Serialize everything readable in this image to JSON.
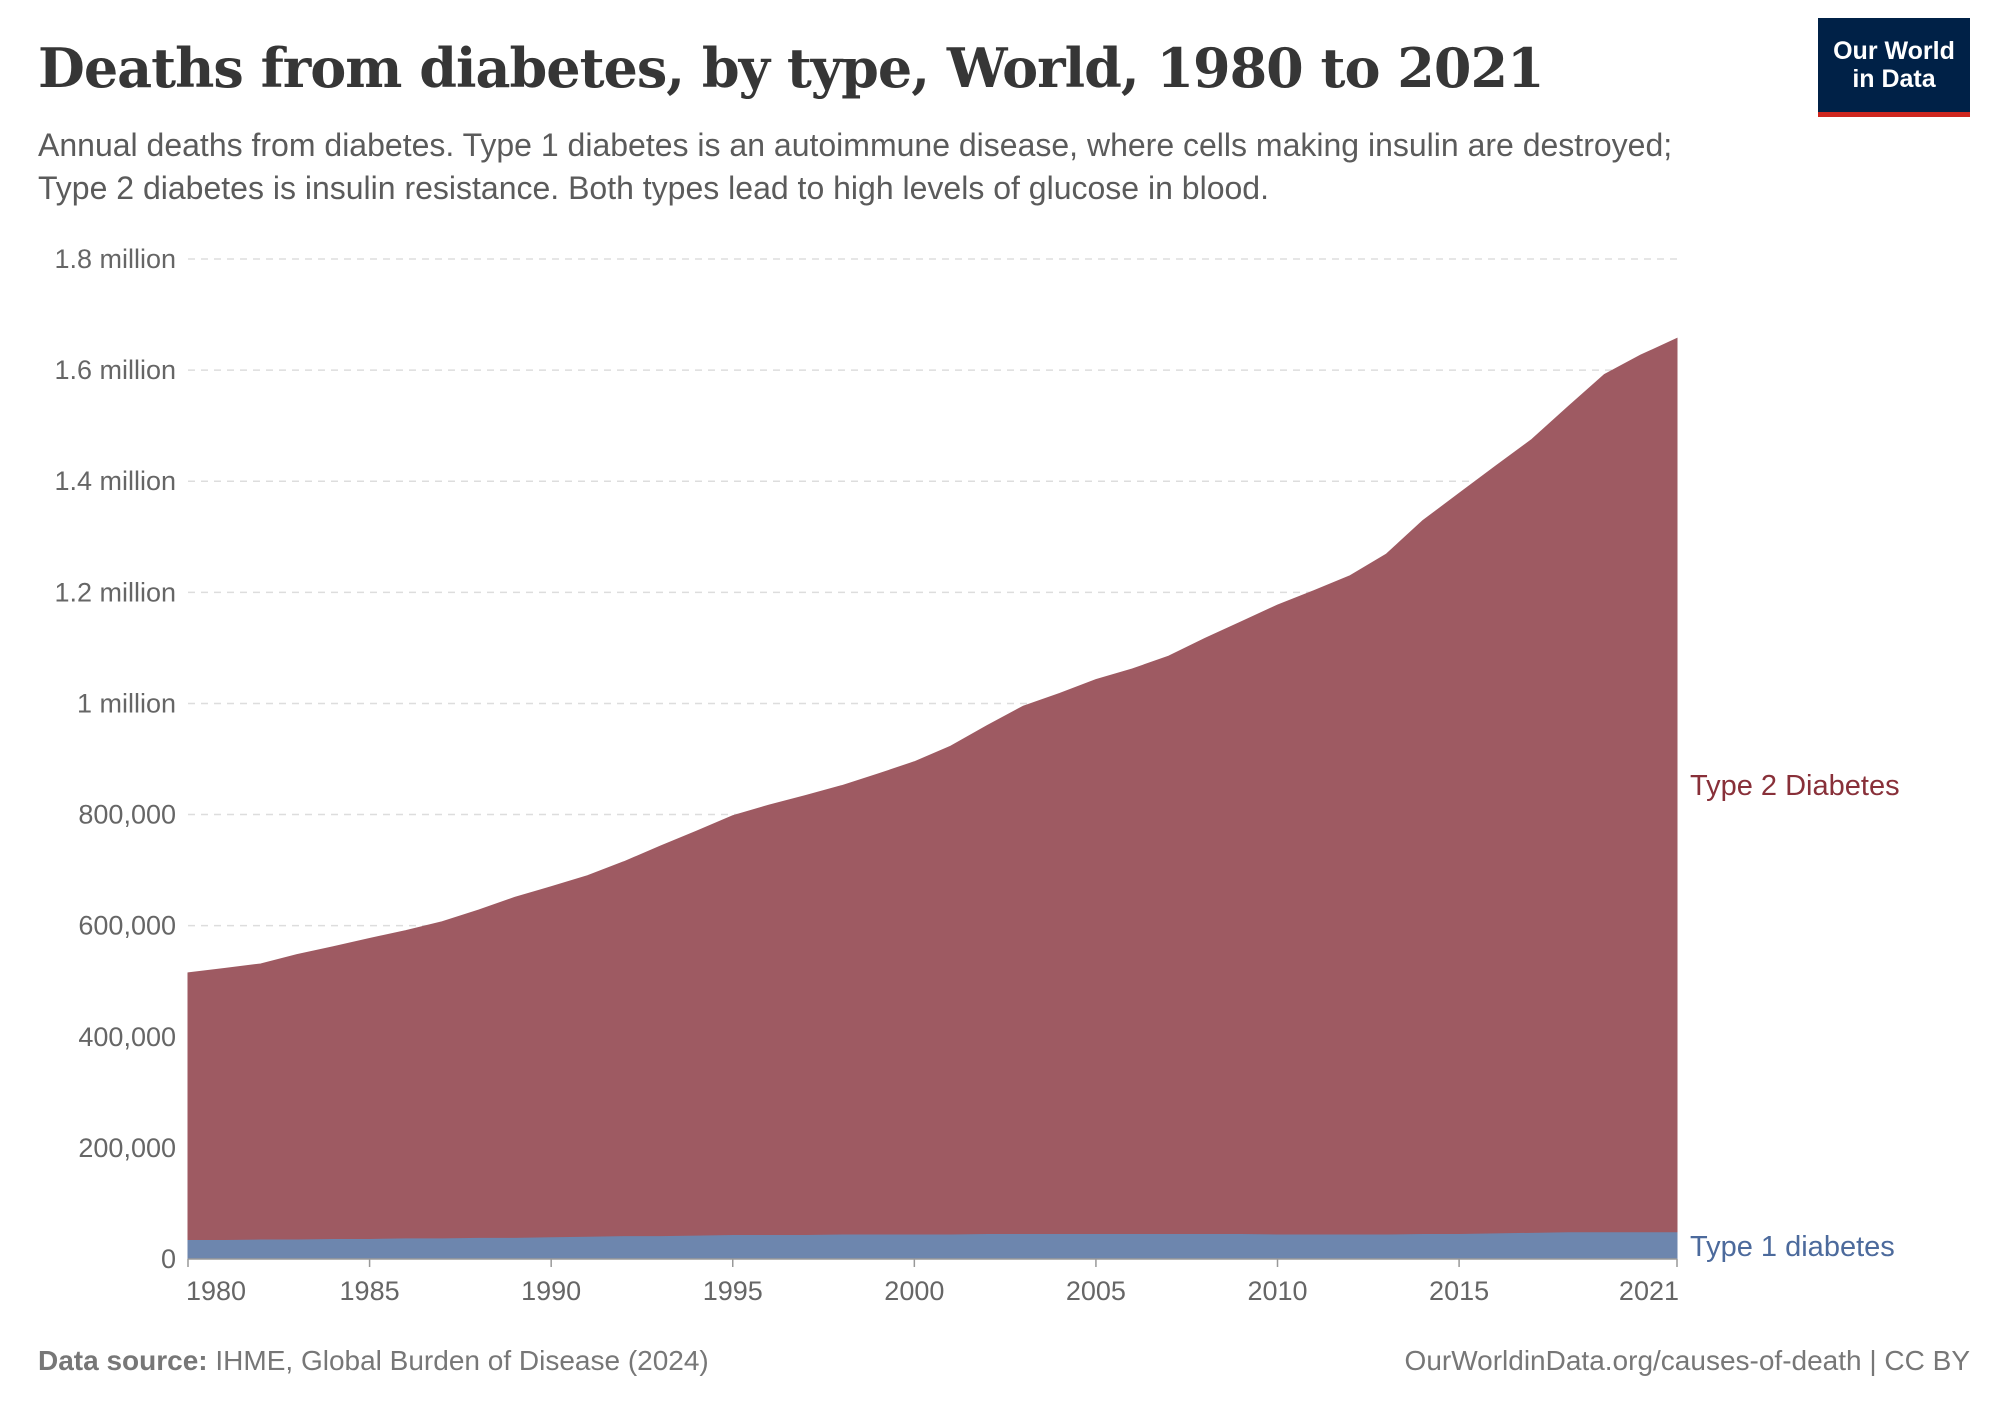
{
  "header": {
    "title": "Deaths from diabetes, by type, World, 1980 to 2021",
    "subtitle": "Annual deaths from diabetes. Type 1 diabetes is an autoimmune disease, where cells making insulin are destroyed; Type 2 diabetes is insulin resistance. Both types lead to high levels of glucose in blood.",
    "logo_line1": "Our World",
    "logo_line2": "in Data"
  },
  "footer": {
    "source_label": "Data source:",
    "source_text": "IHME, Global Burden of Disease (2024)",
    "url": "OurWorldinData.org/causes-of-death",
    "license": "| CC BY"
  },
  "chart_data": {
    "type": "area",
    "stacked": true,
    "title": "Deaths from diabetes, by type, World, 1980 to 2021",
    "xlabel": "",
    "ylabel": "",
    "xlim": [
      1980,
      2021
    ],
    "ylim": [
      0,
      1800000
    ],
    "grid": "horizontal dashed",
    "legend": "inline-right",
    "x": [
      1980,
      1981,
      1982,
      1983,
      1984,
      1985,
      1986,
      1987,
      1988,
      1989,
      1990,
      1991,
      1992,
      1993,
      1994,
      1995,
      1996,
      1997,
      1998,
      1999,
      2000,
      2001,
      2002,
      2003,
      2004,
      2005,
      2006,
      2007,
      2008,
      2009,
      2010,
      2011,
      2012,
      2013,
      2014,
      2015,
      2016,
      2017,
      2018,
      2019,
      2020,
      2021
    ],
    "x_ticks": [
      "1980",
      "1985",
      "1990",
      "1995",
      "2000",
      "2005",
      "2010",
      "2015",
      "2021"
    ],
    "y_ticks": [
      {
        "value": 0,
        "label": "0"
      },
      {
        "value": 200000,
        "label": "200,000"
      },
      {
        "value": 400000,
        "label": "400,000"
      },
      {
        "value": 600000,
        "label": "600,000"
      },
      {
        "value": 800000,
        "label": "800,000"
      },
      {
        "value": 1000000,
        "label": "1 million"
      },
      {
        "value": 1200000,
        "label": "1.2 million"
      },
      {
        "value": 1400000,
        "label": "1.4 million"
      },
      {
        "value": 1600000,
        "label": "1.6 million"
      },
      {
        "value": 1800000,
        "label": "1.8 million"
      }
    ],
    "series": [
      {
        "name": "Type 1 diabetes",
        "color": "#6d86ae",
        "label_color": "#4c6a9c",
        "values": [
          35000,
          35000,
          36000,
          36000,
          37000,
          37000,
          38000,
          38000,
          39000,
          39000,
          40000,
          41000,
          42000,
          42000,
          43000,
          44000,
          44000,
          44000,
          45000,
          45000,
          45000,
          45000,
          46000,
          46000,
          46000,
          46000,
          46000,
          46000,
          46000,
          46000,
          45000,
          45000,
          45000,
          45000,
          46000,
          46000,
          47000,
          48000,
          49000,
          49000,
          49000,
          49000
        ]
      },
      {
        "name": "Type 2 Diabetes",
        "color": "#9e5a62",
        "label_color": "#883039",
        "values": [
          480000,
          488000,
          495000,
          512000,
          525000,
          540000,
          553000,
          569000,
          589000,
          612000,
          630000,
          649000,
          673000,
          701000,
          727000,
          754000,
          773000,
          790000,
          807000,
          828000,
          850000,
          878000,
          914000,
          949000,
          972000,
          997000,
          1016000,
          1039000,
          1071000,
          1101000,
          1132000,
          1158000,
          1185000,
          1224000,
          1283000,
          1332000,
          1380000,
          1427000,
          1485000,
          1543000,
          1578000,
          1608000
        ]
      }
    ]
  }
}
